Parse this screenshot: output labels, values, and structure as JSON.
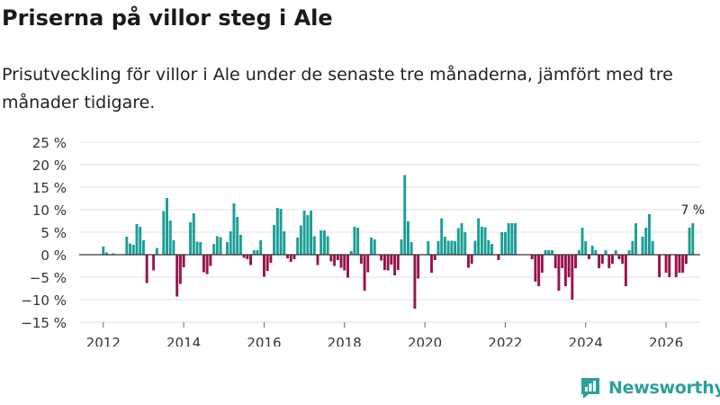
{
  "title": "Priserna på villor steg i Ale",
  "subtitle": "Prisutveckling för villor i Ale under de senaste tre månaderna, jämfört med tre månader tidigare.",
  "brand": {
    "name": "Newsworthy",
    "color": "#2aa198"
  },
  "colors": {
    "positive": "#1a9e96",
    "negative": "#98134a",
    "grid": "#e2e2e2",
    "zero_line": "#333333"
  },
  "chart_data": {
    "type": "bar",
    "title": "Priserna på villor steg i Ale",
    "xlabel": "",
    "ylabel": "",
    "unit": "%",
    "ylim": [
      -15,
      25
    ],
    "yticks": [
      25,
      20,
      15,
      10,
      5,
      0,
      -5,
      -10,
      -15
    ],
    "ytick_labels": [
      "25 %",
      "20 %",
      "15 %",
      "10 %",
      "5 %",
      "0 %",
      "−5 %",
      "−10 %",
      "−15 %"
    ],
    "xlim": [
      2011.4,
      2026.85
    ],
    "xticks": [
      2012,
      2014,
      2016,
      2018,
      2020,
      2022,
      2024,
      2026
    ],
    "xtick_labels": [
      "2012",
      "2014",
      "2016",
      "2018",
      "2020",
      "2022",
      "2024",
      "2026"
    ],
    "last_value_label": "7 %",
    "start_year": 2012,
    "values": [
      1.8,
      0.5,
      0,
      0.3,
      0,
      0,
      0,
      4,
      2.5,
      2.2,
      6.8,
      6.2,
      3.2,
      -6.3,
      0,
      -3.5,
      1.5,
      0,
      9.7,
      12.6,
      7.6,
      3.2,
      -9.3,
      -6.5,
      -2.8,
      0,
      7.2,
      9.2,
      2.9,
      2.8,
      -3.9,
      -4.3,
      -2.5,
      2.4,
      4.1,
      3.9,
      0,
      2.8,
      5.2,
      11.4,
      8.4,
      4.4,
      -0.7,
      -1,
      -2.3,
      1,
      1,
      3.2,
      -4.9,
      -3.6,
      -1.8,
      6.6,
      10.4,
      10.2,
      5.2,
      -0.8,
      -1.6,
      -1,
      3.8,
      6.5,
      9.8,
      8.8,
      9.8,
      4.1,
      -2.3,
      5.4,
      5.4,
      4.1,
      -1.5,
      -2.5,
      -1.2,
      -2.9,
      -3.5,
      -5.1,
      0.8,
      6.2,
      6,
      -2,
      -8,
      -3.9,
      3.8,
      3.4,
      0,
      -1.3,
      -3.4,
      -3.5,
      -2.2,
      -4.6,
      -3.4,
      3.4,
      17.7,
      7.4,
      2.8,
      -12,
      -5.3,
      0,
      0,
      3,
      -4,
      -1.2,
      3,
      8.1,
      4,
      3.1,
      3.1,
      3,
      5.9,
      7,
      5,
      -2.9,
      -2,
      3.1,
      8.1,
      6.2,
      6.1,
      3.2,
      2.4,
      0,
      -1.2,
      5,
      5,
      7,
      7,
      7,
      0,
      0,
      0,
      0,
      -1,
      -6,
      -7,
      -4,
      1,
      1,
      1,
      -3,
      -8,
      -3,
      -7,
      -5,
      -10,
      -3,
      1,
      6,
      3,
      -1,
      2,
      1,
      -3,
      -2,
      1,
      -3,
      -2,
      1,
      -1,
      -2,
      -7,
      1,
      3,
      7,
      0,
      4,
      6,
      9,
      3,
      0,
      -5,
      0,
      -4,
      -5,
      0,
      -5,
      -4,
      -4,
      -2,
      6,
      7
    ]
  }
}
